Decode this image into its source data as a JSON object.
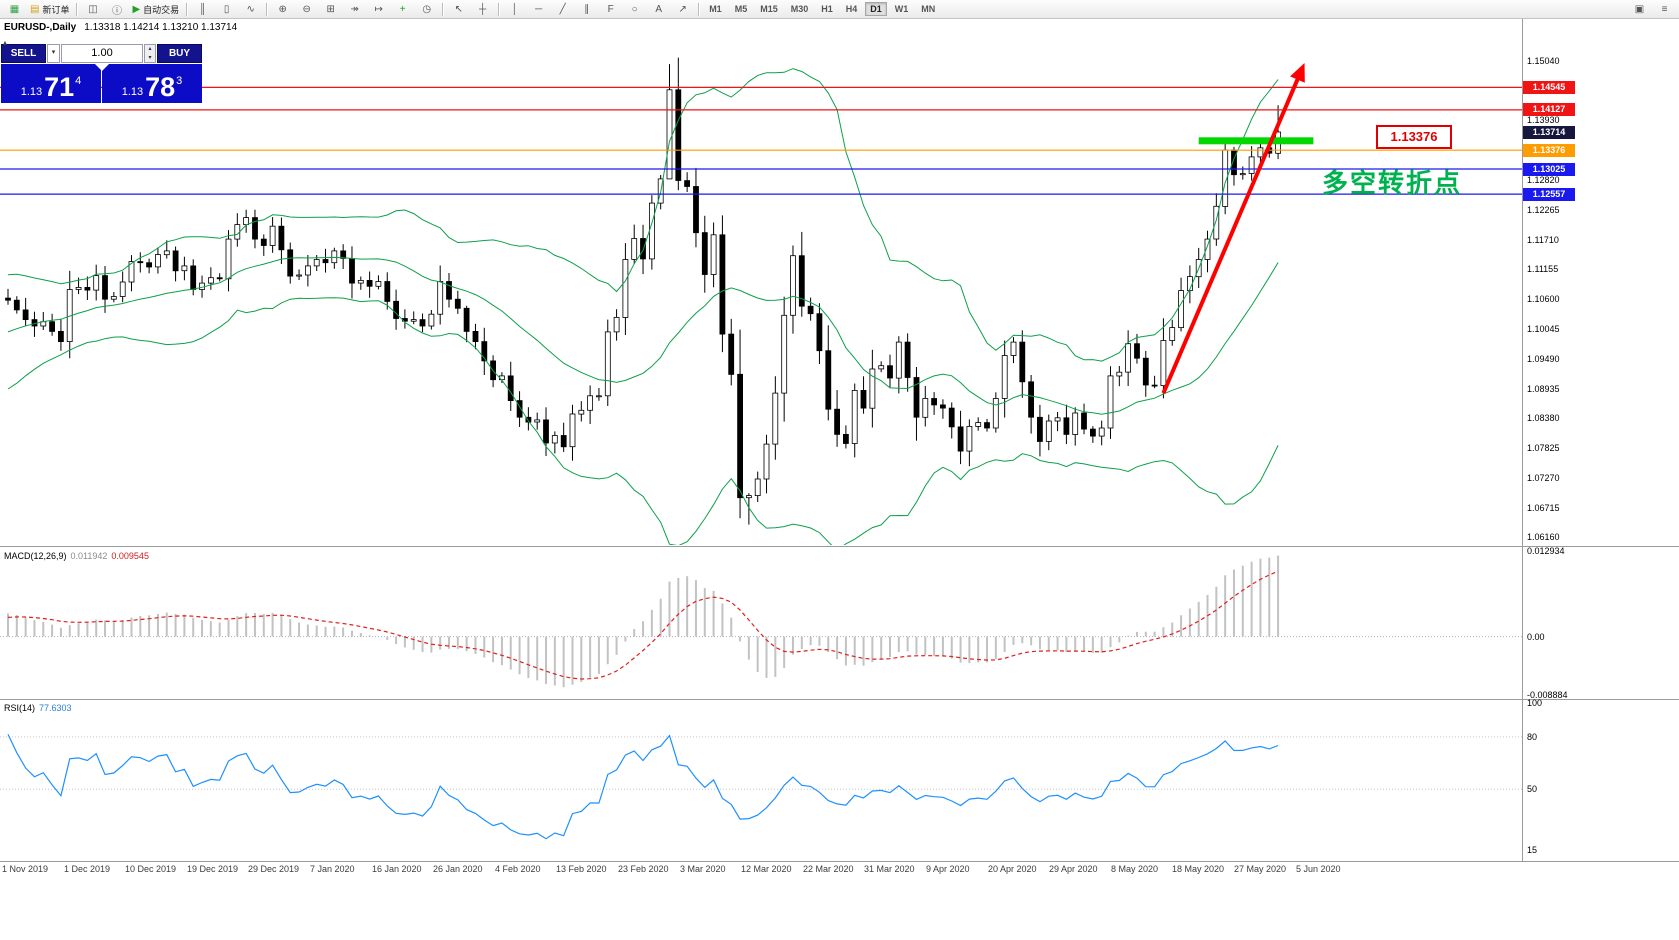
{
  "toolbar": {
    "items": [
      {
        "t": "icon",
        "name": "app-icon",
        "g": "▦",
        "c": "#2f9e44"
      },
      {
        "t": "button",
        "name": "new-order-button",
        "g": "▤",
        "c": "#d4a017",
        "label": "新订单"
      },
      {
        "t": "sep"
      },
      {
        "t": "icon",
        "name": "profiles-icon",
        "g": "◫"
      },
      {
        "t": "icon",
        "name": "info-icon",
        "g": "ⓘ"
      },
      {
        "t": "button",
        "name": "autotrading-button",
        "g": "▶",
        "c": "#21a121",
        "label": "自动交易"
      },
      {
        "t": "sep"
      },
      {
        "t": "icon",
        "name": "bar-chart-icon",
        "g": "║"
      },
      {
        "t": "icon",
        "name": "candlestick-chart-icon",
        "g": "▯"
      },
      {
        "t": "icon",
        "name": "line-chart-icon",
        "g": "∿"
      },
      {
        "t": "sep"
      },
      {
        "t": "icon",
        "name": "zoom-in-icon",
        "g": "⊕"
      },
      {
        "t": "icon",
        "name": "zoom-out-icon",
        "g": "⊖"
      },
      {
        "t": "icon",
        "name": "tile-windows-icon",
        "g": "⊞"
      },
      {
        "t": "icon",
        "name": "auto-scroll-icon",
        "g": "↠"
      },
      {
        "t": "icon",
        "name": "chart-shift-icon",
        "g": "↦"
      },
      {
        "t": "icon",
        "name": "indicators-icon",
        "g": "+",
        "c": "#1f9e1f"
      },
      {
        "t": "icon",
        "name": "periods-icon",
        "g": "◷"
      },
      {
        "t": "sep"
      },
      {
        "t": "icon",
        "name": "cursor-icon",
        "g": "↖"
      },
      {
        "t": "icon",
        "name": "crosshair-icon",
        "g": "┼"
      },
      {
        "t": "sep"
      },
      {
        "t": "icon",
        "name": "vertical-line-icon",
        "g": "│"
      },
      {
        "t": "icon",
        "name": "horizontal-line-icon",
        "g": "─"
      },
      {
        "t": "icon",
        "name": "trendline-icon",
        "g": "╱"
      },
      {
        "t": "icon",
        "name": "channel-icon",
        "g": "∥"
      },
      {
        "t": "icon",
        "name": "fibonacci-icon",
        "g": "F"
      },
      {
        "t": "icon",
        "name": "ellipse-icon",
        "g": "○"
      },
      {
        "t": "icon",
        "name": "text-icon",
        "g": "A"
      },
      {
        "t": "icon",
        "name": "arrow-objects-icon",
        "g": "↗"
      },
      {
        "t": "sep"
      }
    ],
    "timeframes": [
      "M1",
      "M5",
      "M15",
      "M30",
      "H1",
      "H4",
      "D1",
      "W1",
      "MN"
    ],
    "active_timeframe": "D1",
    "right_items": [
      {
        "name": "dock-window-icon",
        "g": "▣"
      },
      {
        "name": "toolbar-menu-icon",
        "g": "≡"
      }
    ]
  },
  "chart_header": {
    "collapse_glyph": "▴",
    "title": "EURUSD-,Daily",
    "ohlc": "1.13318 1.14214 1.13210 1.13714"
  },
  "trade_panel": {
    "sell_label": "SELL",
    "buy_label": "BUY",
    "dd_glyph": "▾",
    "volume": "1.00",
    "spin_up": "▴",
    "spin_down": "▾",
    "bid": {
      "prefix": "1.13",
      "big": "71",
      "sup": "4"
    },
    "ask": {
      "prefix": "1.13",
      "big": "78",
      "sup": "3"
    }
  },
  "annotations": {
    "turning_point_text": "多空转折点",
    "price_tag": "1.13376",
    "arrow_color": "#ff0000",
    "text_color": "#00b24f",
    "zone_color": "#00d800"
  },
  "indicators": {
    "macd": {
      "label": "MACD(12,26,9)",
      "value1": "0.011942",
      "value2": "0.009545",
      "axis": [
        {
          "text": "0.012934",
          "value": 0.012934
        },
        {
          "text": "0.00",
          "value": 0
        },
        {
          "text": "-0.008884",
          "value": -0.008884
        }
      ]
    },
    "rsi": {
      "label": "RSI(14)",
      "value": "77.6303",
      "axis": [
        {
          "text": "100",
          "value": 100
        },
        {
          "text": "80",
          "value": 80
        },
        {
          "text": "50",
          "value": 50
        },
        {
          "text": "15",
          "value": 15
        }
      ]
    }
  },
  "price_axis": {
    "labels": [
      {
        "text": "1.15040",
        "value": 1.1504
      },
      {
        "text": "1.13930",
        "value": 1.1393
      },
      {
        "text": "1.12820",
        "value": 1.1282
      },
      {
        "text": "1.12265",
        "value": 1.12265
      },
      {
        "text": "1.11710",
        "value": 1.1171
      },
      {
        "text": "1.11155",
        "value": 1.11155
      },
      {
        "text": "1.10600",
        "value": 1.106
      },
      {
        "text": "1.10045",
        "value": 1.10045
      },
      {
        "text": "1.09490",
        "value": 1.0949
      },
      {
        "text": "1.08935",
        "value": 1.08935
      },
      {
        "text": "1.08380",
        "value": 1.0838
      },
      {
        "text": "1.07825",
        "value": 1.07825
      },
      {
        "text": "1.07270",
        "value": 1.0727
      },
      {
        "text": "1.06715",
        "value": 1.06715
      },
      {
        "text": "1.06160",
        "value": 1.0616
      }
    ],
    "tagged": [
      {
        "text": "1.14545",
        "value": 1.14545,
        "bg": "#f01414"
      },
      {
        "text": "1.14127",
        "value": 1.14127,
        "bg": "#f01414"
      },
      {
        "text": "1.13714",
        "value": 1.13714,
        "bg": "#17173d"
      },
      {
        "text": "1.13376",
        "value": 1.13376,
        "bg": "#ff9c00"
      },
      {
        "text": "1.13025",
        "value": 1.13025,
        "bg": "#1a1af0"
      },
      {
        "text": "1.12557",
        "value": 1.12557,
        "bg": "#1a1af0"
      }
    ]
  },
  "date_axis": [
    "1 Nov 2019",
    "1 Dec 2019",
    "10 Dec 2019",
    "19 Dec 2019",
    "29 Dec 2019",
    "7 Jan 2020",
    "16 Jan 2020",
    "26 Jan 2020",
    "4 Feb 2020",
    "13 Feb 2020",
    "23 Feb 2020",
    "3 Mar 2020",
    "12 Mar 2020",
    "22 Mar 2020",
    "31 Mar 2020",
    "9 Apr 2020",
    "20 Apr 2020",
    "29 Apr 2020",
    "8 May 2020",
    "18 May 2020",
    "27 May 2020",
    "5 Jun 2020"
  ],
  "chart_data": {
    "type": "candlestick",
    "symbol": "EURUSD-",
    "timeframe": "Daily",
    "last_ohlc": {
      "open": 1.13318,
      "high": 1.14214,
      "low": 1.1321,
      "close": 1.13714
    },
    "price_range": {
      "top": 1.1582,
      "bottom": 1.0602
    },
    "macd_range": {
      "max": 0.012934,
      "min": -0.008884
    },
    "rsi_range": {
      "max": 100,
      "min": 10
    },
    "bollinger": {
      "period": 20,
      "deviation": 2,
      "color": "#0ca04a"
    },
    "levels": [
      {
        "price": 1.14545,
        "color": "#f01414"
      },
      {
        "price": 1.14127,
        "color": "#f01414"
      },
      {
        "price": 1.13376,
        "color": "#ff9c00"
      },
      {
        "price": 1.13025,
        "color": "#1a1af0"
      },
      {
        "price": 1.12557,
        "color": "#1a1af0"
      }
    ],
    "green_zone": {
      "from_index": 135,
      "to_index": 148,
      "price": 1.1355
    },
    "trend_arrow": {
      "from_index": 131,
      "from_price": 1.0885,
      "to_index": 147,
      "to_price": 1.15
    },
    "pre_closes": [
      1.093,
      1.0922,
      1.0915,
      1.0928,
      1.094,
      1.0951,
      1.0946,
      1.0958,
      1.097,
      1.0983,
      1.0995,
      1.1008,
      1.1021,
      1.1035,
      1.1042,
      1.105,
      1.1061,
      1.107,
      1.1066,
      1.1062
    ],
    "closes": [
      1.1058,
      1.104,
      1.1022,
      1.101,
      1.1018,
      1.1,
      1.0981,
      1.1078,
      1.1082,
      1.1077,
      1.1104,
      1.106,
      1.1065,
      1.1092,
      1.113,
      1.1128,
      1.112,
      1.1143,
      1.115,
      1.1113,
      1.1122,
      1.1078,
      1.109,
      1.11,
      1.1098,
      1.1172,
      1.1199,
      1.1212,
      1.1172,
      1.116,
      1.1196,
      1.1152,
      1.1103,
      1.1105,
      1.1122,
      1.1134,
      1.1128,
      1.115,
      1.1136,
      1.109,
      1.1095,
      1.1084,
      1.1093,
      1.1056,
      1.1024,
      1.1019,
      1.1022,
      1.101,
      1.1032,
      1.1093,
      1.106,
      1.1043,
      1.1,
      1.0981,
      1.0945,
      1.091,
      1.0917,
      1.0871,
      1.084,
      1.0831,
      1.0835,
      1.0792,
      1.0806,
      1.0785,
      1.0846,
      1.0853,
      1.088,
      1.088,
      1.0999,
      1.1026,
      1.1134,
      1.1173,
      1.1135,
      1.1239,
      1.1284,
      1.145,
      1.1281,
      1.127,
      1.1184,
      1.1106,
      1.118,
      1.0995,
      1.092,
      1.069,
      1.0694,
      1.0725,
      1.079,
      1.0885,
      1.103,
      1.1141,
      1.1047,
      1.1033,
      1.0964,
      1.0855,
      1.0808,
      1.0791,
      1.089,
      1.0857,
      1.093,
      1.0936,
      1.0913,
      1.098,
      1.0914,
      1.084,
      1.0875,
      1.0863,
      1.0857,
      1.0822,
      1.0777,
      1.0823,
      1.083,
      1.082,
      1.0875,
      1.0955,
      1.098,
      1.0906,
      1.084,
      1.0795,
      1.0833,
      1.0839,
      1.0808,
      1.0848,
      1.0818,
      1.0805,
      1.082,
      1.0917,
      1.0924,
      1.0977,
      1.095,
      1.09,
      1.0899,
      1.0983,
      1.1007,
      1.1076,
      1.1102,
      1.1134,
      1.1172,
      1.1233,
      1.1338,
      1.1292,
      1.1294,
      1.1325,
      1.1342,
      1.1332,
      1.13714
    ],
    "overrides": {
      "75": {
        "high": 1.1498,
        "low": 1.1296
      },
      "83": {
        "low": 1.0652
      },
      "84": {
        "low": 1.064
      },
      "144": {
        "open": 1.13318,
        "high": 1.14214,
        "low": 1.1321,
        "close": 1.13714
      }
    }
  }
}
